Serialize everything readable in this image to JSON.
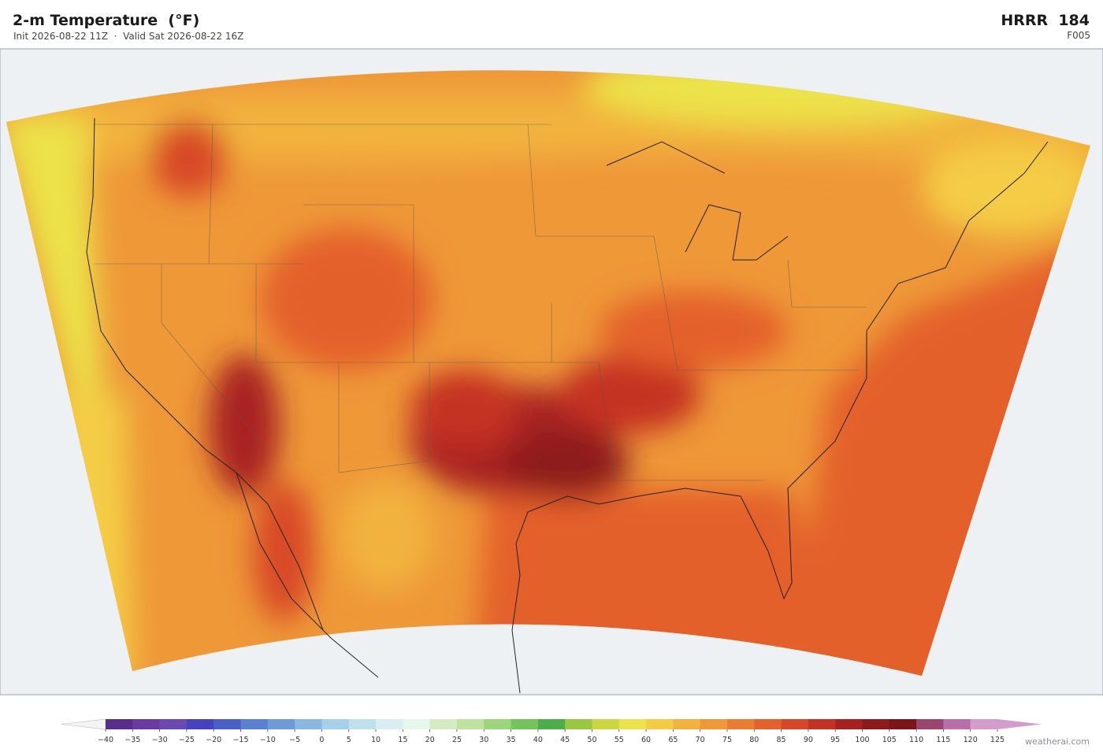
{
  "header": {
    "title": "2-m Temperature  (°F)",
    "subtitle": "Init 2026-08-22 11Z  ·  Valid Sat 2026-08-22 16Z",
    "model": "HRRR  184",
    "forecast_hour": "F005"
  },
  "colorbar": {
    "ticks": [
      {
        "value": -40,
        "label": "−40"
      },
      {
        "value": -35,
        "label": "−35"
      },
      {
        "value": -30,
        "label": "−30"
      },
      {
        "value": -25,
        "label": "−25"
      },
      {
        "value": -20,
        "label": "−20"
      },
      {
        "value": -15,
        "label": "−15"
      },
      {
        "value": -10,
        "label": "−10"
      },
      {
        "value": -5,
        "label": "−5"
      },
      0,
      5,
      10,
      15,
      20,
      25,
      30,
      35,
      40,
      45,
      50,
      55,
      60,
      65,
      70,
      75,
      80,
      85,
      90,
      95,
      100,
      105,
      110,
      115,
      120,
      125
    ],
    "colors": [
      "#5a2d8c",
      "#6a3a9e",
      "#6e48b0",
      "#4444c0",
      "#4a5fc8",
      "#5a80d0",
      "#6e9ad8",
      "#8ab8e0",
      "#a6d0e8",
      "#c0e0ee",
      "#d8eef2",
      "#e6f6ea",
      "#d4ecc4",
      "#bde39e",
      "#9cd67a",
      "#74c45c",
      "#4cae48",
      "#98c842",
      "#ccd640",
      "#ece24a",
      "#f4cc44",
      "#f2b23e",
      "#ee9838",
      "#ea7d32",
      "#e4602c",
      "#d84828",
      "#c43224",
      "#a82020",
      "#8e1a1c",
      "#7c1418",
      "#9c4470",
      "#b870a8",
      "#d49ccc"
    ],
    "under_color": "#f4f4f4",
    "over_color": "#d49ccc"
  },
  "footer": {
    "watermark": "weatherai.com"
  }
}
